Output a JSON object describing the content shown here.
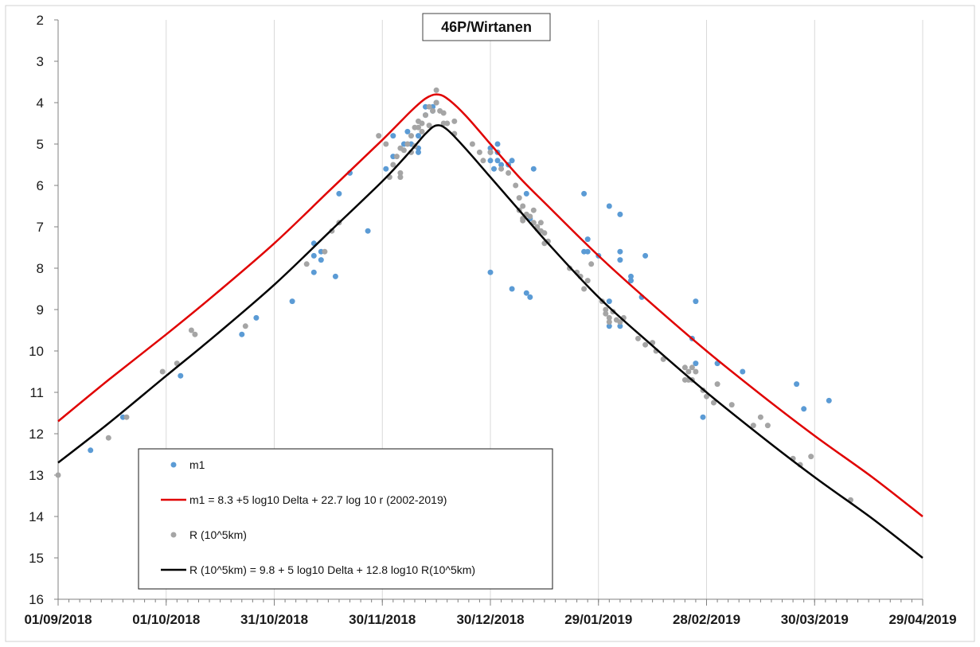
{
  "chart_data": {
    "type": "scatter",
    "title": "46P/Wirtanen",
    "xlabel": "",
    "ylabel": "",
    "x_axis": {
      "type": "date",
      "min": "2018-09-01",
      "max": "2019-04-29",
      "ticks": [
        "2018-09-01",
        "2018-10-01",
        "2018-10-31",
        "2018-11-30",
        "2018-12-30",
        "2019-01-29",
        "2019-02-28",
        "2019-03-30",
        "2019-04-29"
      ],
      "tick_labels": [
        "01/09/2018",
        "01/10/2018",
        "31/10/2018",
        "30/11/2018",
        "30/12/2018",
        "29/01/2019",
        "28/02/2019",
        "30/03/2019",
        "29/04/2019"
      ]
    },
    "y_axis": {
      "min": 2,
      "max": 16,
      "inverted": true,
      "ticks": [
        2,
        3,
        4,
        5,
        6,
        7,
        8,
        9,
        10,
        11,
        12,
        13,
        14,
        15,
        16
      ],
      "tick_labels": [
        "2",
        "3",
        "4",
        "5",
        "6",
        "7",
        "8",
        "9",
        "10",
        "11",
        "12",
        "13",
        "14",
        "15",
        "16"
      ]
    },
    "grid": "vertical-major",
    "legend_position": "bottom-left",
    "series": [
      {
        "name": "m1",
        "kind": "points",
        "color": "#5b9bd5",
        "points": [
          [
            "2018-09-10",
            12.4
          ],
          [
            "2018-09-19",
            11.6
          ],
          [
            "2018-10-05",
            10.6
          ],
          [
            "2018-10-22",
            9.6
          ],
          [
            "2018-10-26",
            9.2
          ],
          [
            "2018-11-05",
            8.8
          ],
          [
            "2018-11-11",
            8.1
          ],
          [
            "2018-11-11",
            7.7
          ],
          [
            "2018-11-11",
            7.4
          ],
          [
            "2018-11-13",
            7.8
          ],
          [
            "2018-11-13",
            7.6
          ],
          [
            "2018-11-17",
            8.2
          ],
          [
            "2018-11-18",
            6.2
          ],
          [
            "2018-11-21",
            5.7
          ],
          [
            "2018-11-26",
            7.1
          ],
          [
            "2018-12-01",
            5.6
          ],
          [
            "2018-12-03",
            5.3
          ],
          [
            "2018-12-03",
            4.8
          ],
          [
            "2018-12-06",
            5.0
          ],
          [
            "2018-12-07",
            4.7
          ],
          [
            "2018-12-08",
            5.0
          ],
          [
            "2018-12-10",
            5.1
          ],
          [
            "2018-12-10",
            5.2
          ],
          [
            "2018-12-10",
            4.8
          ],
          [
            "2018-12-12",
            4.3
          ],
          [
            "2018-12-12",
            4.1
          ],
          [
            "2018-12-14",
            4.2
          ],
          [
            "2018-12-14",
            4.1
          ],
          [
            "2018-12-15",
            4.0
          ],
          [
            "2018-12-30",
            8.1
          ],
          [
            "2018-12-30",
            5.1
          ],
          [
            "2018-12-30",
            5.2
          ],
          [
            "2018-12-30",
            5.4
          ],
          [
            "2018-12-31",
            5.6
          ],
          [
            "2019-01-01",
            5.0
          ],
          [
            "2019-01-01",
            5.2
          ],
          [
            "2019-01-01",
            5.4
          ],
          [
            "2019-01-02",
            5.5
          ],
          [
            "2019-01-04",
            5.5
          ],
          [
            "2019-01-05",
            8.5
          ],
          [
            "2019-01-05",
            5.4
          ],
          [
            "2019-01-09",
            8.6
          ],
          [
            "2019-01-09",
            6.2
          ],
          [
            "2019-01-10",
            8.7
          ],
          [
            "2019-01-10",
            6.8
          ],
          [
            "2019-01-11",
            5.6
          ],
          [
            "2019-01-25",
            6.2
          ],
          [
            "2019-01-25",
            7.6
          ],
          [
            "2019-01-26",
            7.3
          ],
          [
            "2019-01-26",
            7.6
          ],
          [
            "2019-01-29",
            7.7
          ],
          [
            "2019-02-01",
            6.5
          ],
          [
            "2019-02-01",
            8.8
          ],
          [
            "2019-02-01",
            9.4
          ],
          [
            "2019-02-04",
            6.7
          ],
          [
            "2019-02-04",
            7.6
          ],
          [
            "2019-02-04",
            7.8
          ],
          [
            "2019-02-04",
            9.4
          ],
          [
            "2019-02-07",
            8.2
          ],
          [
            "2019-02-07",
            8.3
          ],
          [
            "2019-02-10",
            8.7
          ],
          [
            "2019-02-11",
            7.7
          ],
          [
            "2019-02-24",
            9.7
          ],
          [
            "2019-02-25",
            8.8
          ],
          [
            "2019-02-25",
            10.3
          ],
          [
            "2019-02-27",
            11.6
          ],
          [
            "2019-03-03",
            10.3
          ],
          [
            "2019-03-10",
            10.5
          ],
          [
            "2019-03-25",
            10.8
          ],
          [
            "2019-03-27",
            11.4
          ],
          [
            "2019-04-03",
            11.2
          ]
        ]
      },
      {
        "name": "m1 = 8.3 +5 log10 Delta + 22.7 log 10 r (2002-2019)",
        "kind": "line",
        "color": "#e00000",
        "points": [
          [
            "2018-09-01",
            11.7
          ],
          [
            "2018-09-15",
            10.7
          ],
          [
            "2018-10-01",
            9.6
          ],
          [
            "2018-10-15",
            8.6
          ],
          [
            "2018-10-31",
            7.4
          ],
          [
            "2018-11-15",
            6.15
          ],
          [
            "2018-11-30",
            4.9
          ],
          [
            "2018-12-08",
            4.2
          ],
          [
            "2018-12-12",
            3.9
          ],
          [
            "2018-12-15",
            3.8
          ],
          [
            "2018-12-18",
            3.9
          ],
          [
            "2018-12-23",
            4.3
          ],
          [
            "2018-12-30",
            5.0
          ],
          [
            "2019-01-07",
            5.8
          ],
          [
            "2019-01-15",
            6.5
          ],
          [
            "2019-01-29",
            7.7
          ],
          [
            "2019-02-12",
            8.8
          ],
          [
            "2019-02-28",
            10.0
          ],
          [
            "2019-03-15",
            11.05
          ],
          [
            "2019-03-30",
            12.05
          ],
          [
            "2019-04-15",
            13.05
          ],
          [
            "2019-04-29",
            14.0
          ]
        ]
      },
      {
        "name": "R (10^5km)",
        "kind": "points",
        "color": "#a5a5a5",
        "points": [
          [
            "2018-09-01",
            13.0
          ],
          [
            "2018-09-15",
            12.1
          ],
          [
            "2018-09-20",
            11.6
          ],
          [
            "2018-09-30",
            10.5
          ],
          [
            "2018-10-04",
            10.3
          ],
          [
            "2018-10-08",
            9.5
          ],
          [
            "2018-10-09",
            9.6
          ],
          [
            "2018-10-23",
            9.4
          ],
          [
            "2018-11-09",
            7.9
          ],
          [
            "2018-11-14",
            7.6
          ],
          [
            "2018-11-16",
            7.1
          ],
          [
            "2018-11-18",
            6.9
          ],
          [
            "2018-11-29",
            4.8
          ],
          [
            "2018-12-01",
            5.0
          ],
          [
            "2018-12-02",
            5.8
          ],
          [
            "2018-12-03",
            5.5
          ],
          [
            "2018-12-04",
            5.3
          ],
          [
            "2018-12-05",
            5.1
          ],
          [
            "2018-12-05",
            5.7
          ],
          [
            "2018-12-05",
            5.8
          ],
          [
            "2018-12-06",
            5.15
          ],
          [
            "2018-12-07",
            5.0
          ],
          [
            "2018-12-08",
            5.2
          ],
          [
            "2018-12-08",
            4.8
          ],
          [
            "2018-12-09",
            4.6
          ],
          [
            "2018-12-09",
            5.05
          ],
          [
            "2018-12-10",
            4.45
          ],
          [
            "2018-12-10",
            4.6
          ],
          [
            "2018-12-11",
            4.5
          ],
          [
            "2018-12-11",
            4.7
          ],
          [
            "2018-12-12",
            4.3
          ],
          [
            "2018-12-13",
            4.1
          ],
          [
            "2018-12-13",
            4.55
          ],
          [
            "2018-12-14",
            4.2
          ],
          [
            "2018-12-15",
            3.7
          ],
          [
            "2018-12-15",
            4.0
          ],
          [
            "2018-12-16",
            4.2
          ],
          [
            "2018-12-17",
            4.25
          ],
          [
            "2018-12-17",
            4.5
          ],
          [
            "2018-12-18",
            4.5
          ],
          [
            "2018-12-20",
            4.45
          ],
          [
            "2018-12-20",
            4.75
          ],
          [
            "2018-12-25",
            5.0
          ],
          [
            "2018-12-27",
            5.2
          ],
          [
            "2018-12-28",
            5.4
          ],
          [
            "2018-12-30",
            5.2
          ],
          [
            "2019-01-02",
            5.6
          ],
          [
            "2019-01-04",
            5.7
          ],
          [
            "2019-01-06",
            6.0
          ],
          [
            "2019-01-07",
            6.3
          ],
          [
            "2019-01-07",
            6.6
          ],
          [
            "2019-01-08",
            6.5
          ],
          [
            "2019-01-08",
            6.8
          ],
          [
            "2019-01-08",
            6.85
          ],
          [
            "2019-01-09",
            6.7
          ],
          [
            "2019-01-10",
            6.75
          ],
          [
            "2019-01-11",
            6.6
          ],
          [
            "2019-01-11",
            6.9
          ],
          [
            "2019-01-12",
            7.0
          ],
          [
            "2019-01-12",
            7.05
          ],
          [
            "2019-01-13",
            6.9
          ],
          [
            "2019-01-13",
            7.1
          ],
          [
            "2019-01-14",
            7.15
          ],
          [
            "2019-01-14",
            7.4
          ],
          [
            "2019-01-15",
            7.35
          ],
          [
            "2019-01-21",
            8.0
          ],
          [
            "2019-01-23",
            8.1
          ],
          [
            "2019-01-24",
            8.2
          ],
          [
            "2019-01-25",
            8.5
          ],
          [
            "2019-01-26",
            8.3
          ],
          [
            "2019-01-27",
            7.9
          ],
          [
            "2019-01-30",
            8.8
          ],
          [
            "2019-01-31",
            9.0
          ],
          [
            "2019-01-31",
            9.1
          ],
          [
            "2019-02-01",
            9.2
          ],
          [
            "2019-02-01",
            9.3
          ],
          [
            "2019-02-02",
            9.05
          ],
          [
            "2019-02-03",
            9.25
          ],
          [
            "2019-02-04",
            9.3
          ],
          [
            "2019-02-05",
            9.2
          ],
          [
            "2019-02-09",
            9.7
          ],
          [
            "2019-02-11",
            9.85
          ],
          [
            "2019-02-13",
            9.8
          ],
          [
            "2019-02-14",
            10.0
          ],
          [
            "2019-02-16",
            10.2
          ],
          [
            "2019-02-22",
            10.4
          ],
          [
            "2019-02-22",
            10.7
          ],
          [
            "2019-02-23",
            10.5
          ],
          [
            "2019-02-23",
            10.7
          ],
          [
            "2019-02-24",
            10.4
          ],
          [
            "2019-02-24",
            10.7
          ],
          [
            "2019-02-25",
            10.5
          ],
          [
            "2019-02-27",
            10.95
          ],
          [
            "2019-02-28",
            11.1
          ],
          [
            "2019-03-02",
            11.25
          ],
          [
            "2019-03-03",
            10.8
          ],
          [
            "2019-03-07",
            11.3
          ],
          [
            "2019-03-13",
            11.8
          ],
          [
            "2019-03-15",
            11.6
          ],
          [
            "2019-03-17",
            11.8
          ],
          [
            "2019-03-24",
            12.6
          ],
          [
            "2019-03-26",
            12.75
          ],
          [
            "2019-03-29",
            12.55
          ],
          [
            "2019-04-09",
            13.6
          ]
        ]
      },
      {
        "name": "R (10^5km) = 9.8 + 5 log10 Delta + 12.8 log10 R(10^5km)",
        "kind": "line",
        "color": "#000000",
        "points": [
          [
            "2018-09-01",
            12.7
          ],
          [
            "2018-09-15",
            11.75
          ],
          [
            "2018-10-01",
            10.6
          ],
          [
            "2018-10-15",
            9.6
          ],
          [
            "2018-10-31",
            8.4
          ],
          [
            "2018-11-15",
            7.15
          ],
          [
            "2018-11-30",
            5.9
          ],
          [
            "2018-12-08",
            5.15
          ],
          [
            "2018-12-12",
            4.75
          ],
          [
            "2018-12-15",
            4.55
          ],
          [
            "2018-12-18",
            4.65
          ],
          [
            "2018-12-23",
            5.1
          ],
          [
            "2018-12-30",
            5.8
          ],
          [
            "2019-01-07",
            6.6
          ],
          [
            "2019-01-15",
            7.4
          ],
          [
            "2019-01-29",
            8.7
          ],
          [
            "2019-02-12",
            9.8
          ],
          [
            "2019-02-28",
            11.0
          ],
          [
            "2019-03-15",
            12.05
          ],
          [
            "2019-03-30",
            13.05
          ],
          [
            "2019-04-15",
            14.05
          ],
          [
            "2019-04-29",
            15.0
          ]
        ]
      }
    ]
  }
}
